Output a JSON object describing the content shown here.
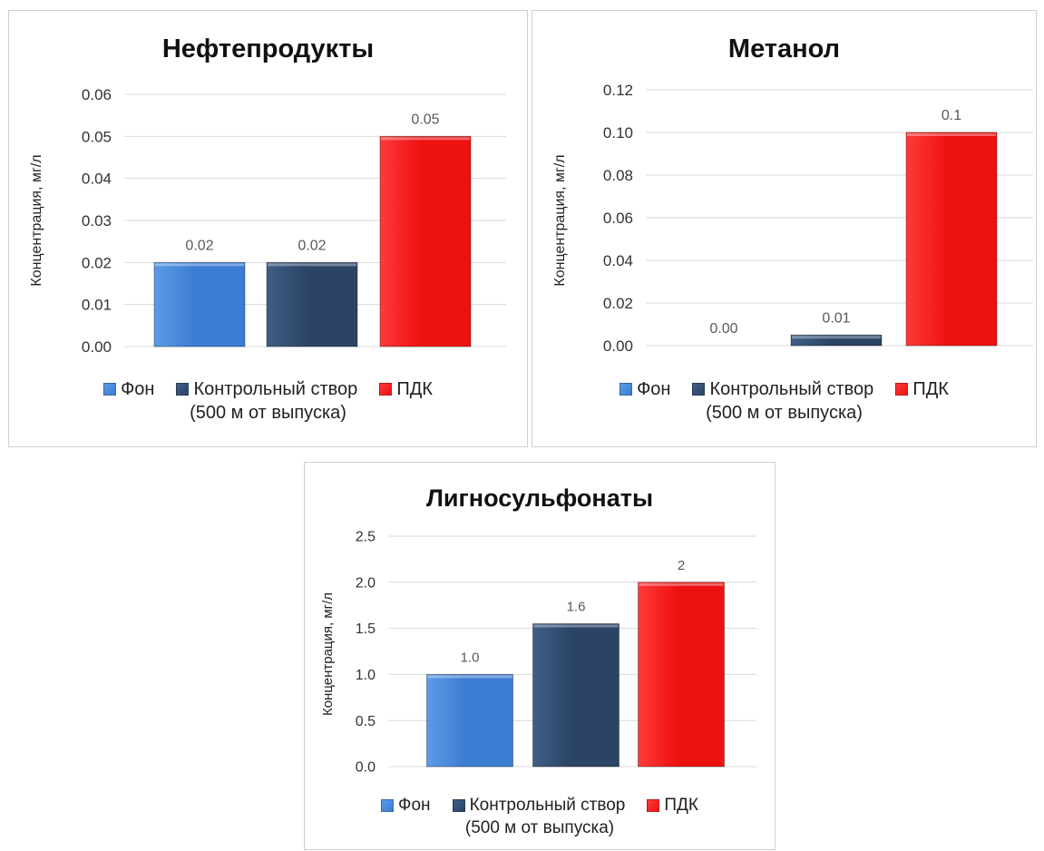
{
  "chart_data": [
    {
      "type": "bar",
      "title": "Нефтепродукты",
      "ylabel": "Концентрация, мг/л",
      "categories": [
        "Фон",
        "Контрольный створ (500 м от выпуска)",
        "ПДК"
      ],
      "values": [
        0.02,
        0.02,
        0.05
      ],
      "value_labels": [
        "0.02",
        "0.02",
        "0.05"
      ],
      "ylim": [
        0,
        0.06
      ],
      "yticks": [
        "0.00",
        "0.01",
        "0.02",
        "0.03",
        "0.04",
        "0.05",
        "0.06"
      ],
      "grid": true,
      "legend_position": "bottom",
      "legend": [
        "Фон",
        "Контрольный створ",
        "ПДК"
      ],
      "legend_sub": "(500 м от выпуска)"
    },
    {
      "type": "bar",
      "title": "Метанол",
      "ylabel": "Концентрация, мг/л",
      "categories": [
        "Фон",
        "Контрольный створ (500 м от выпуска)",
        "ПДК"
      ],
      "values": [
        0.0,
        0.005,
        0.1
      ],
      "value_labels": [
        "0.00",
        "0.01",
        "0.1"
      ],
      "ylim": [
        0,
        0.12
      ],
      "yticks": [
        "0.00",
        "0.02",
        "0.04",
        "0.06",
        "0.08",
        "0.10",
        "0.12"
      ],
      "grid": true,
      "legend_position": "bottom",
      "legend": [
        "Фон",
        "Контрольный створ",
        "ПДК"
      ],
      "legend_sub": "(500 м от выпуска)"
    },
    {
      "type": "bar",
      "title": "Лигносульфонаты",
      "ylabel": "Концентрация, мг/л",
      "categories": [
        "Фон",
        "Контрольный створ (500 м от выпуска)",
        "ПДК"
      ],
      "values": [
        1.0,
        1.55,
        2.0
      ],
      "value_labels": [
        "1.0",
        "1.6",
        "2"
      ],
      "ylim": [
        0,
        2.5
      ],
      "yticks": [
        "0.0",
        "0.5",
        "1.0",
        "1.5",
        "2.0",
        "2.5"
      ],
      "grid": true,
      "legend_position": "bottom",
      "legend": [
        "Фон",
        "Контрольный створ",
        "ПДК"
      ],
      "legend_sub": "(500 м от выпуска)"
    }
  ],
  "colors": {
    "fon": "#3c7dd4",
    "fon_light": "#5b9be8",
    "control": "#2b4466",
    "control_light": "#3f5e86",
    "pdk": "#ee1111",
    "pdk_light": "#ff3a3a",
    "grid": "#d9d9d9",
    "axis_text": "#333333",
    "value_label": "#595959"
  }
}
